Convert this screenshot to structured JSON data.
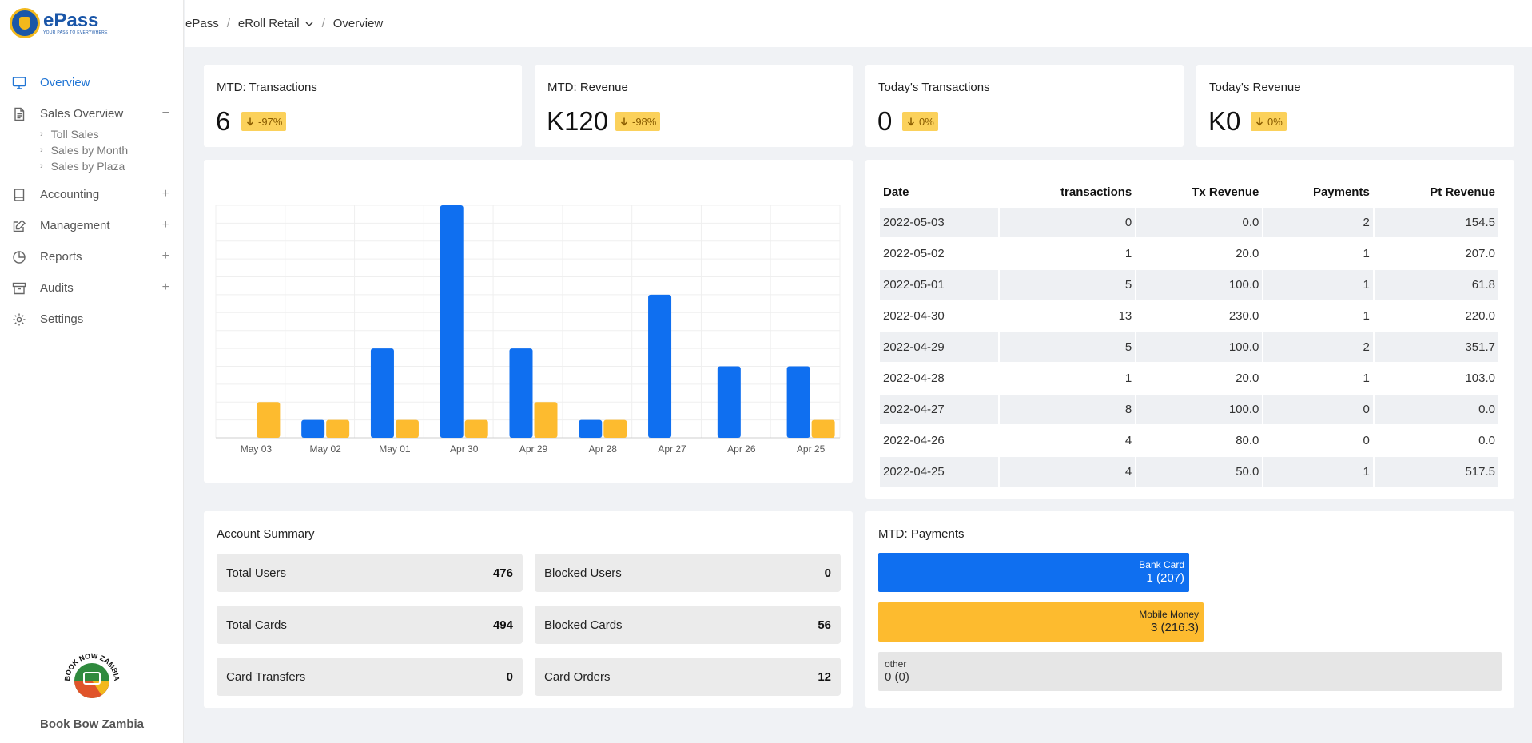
{
  "app": {
    "name": "ePass",
    "tagline": "YOUR PASS TO EVERYWHERE"
  },
  "breadcrumb": {
    "root": "ePass",
    "section": "eRoll Retail",
    "page": "Overview"
  },
  "sidebar": {
    "items": [
      {
        "label": "Overview",
        "icon": "monitor-icon",
        "active": true
      },
      {
        "label": "Sales Overview",
        "icon": "file-text-icon",
        "expanded": true,
        "children": [
          "Toll Sales",
          "Sales by Month",
          "Sales by Plaza"
        ]
      },
      {
        "label": "Accounting",
        "icon": "book-icon"
      },
      {
        "label": "Management",
        "icon": "edit-icon"
      },
      {
        "label": "Reports",
        "icon": "pie-chart-icon"
      },
      {
        "label": "Audits",
        "icon": "archive-icon"
      },
      {
        "label": "Settings",
        "icon": "gear-icon"
      }
    ],
    "expand_symbol": "+",
    "collapse_symbol": "−",
    "footer_logo_text": "BOOK NOW ZAMBIA",
    "footer_name": "Book Bow Zambia"
  },
  "stats": [
    {
      "title": "MTD: Transactions",
      "value": "6",
      "change": "-97%"
    },
    {
      "title": "MTD: Revenue",
      "value": "K120",
      "change": "-98%"
    },
    {
      "title": "Today's Transactions",
      "value": "0",
      "change": "0%"
    },
    {
      "title": "Today's Revenue",
      "value": "K0",
      "change": "0%"
    }
  ],
  "colors": {
    "blue": "#0f6ff0",
    "yellow": "#fdbb2f",
    "active": "#1f74d4"
  },
  "chart_data": {
    "type": "bar",
    "categories": [
      "May 03",
      "May 02",
      "May 01",
      "Apr 30",
      "Apr 29",
      "Apr 28",
      "Apr 27",
      "Apr 26",
      "Apr 25"
    ],
    "series": [
      {
        "values": [
          0,
          1,
          5,
          13,
          5,
          1,
          8,
          4,
          4
        ],
        "color": "#0f6ff0"
      },
      {
        "values": [
          2,
          1,
          1,
          1,
          2,
          1,
          0,
          0,
          1
        ],
        "color": "#fdbb2f"
      }
    ],
    "ylim": [
      0,
      13
    ],
    "grid": true,
    "title": "",
    "xlabel": "",
    "ylabel": ""
  },
  "daily_table": {
    "headers": [
      "Date",
      "transactions",
      "Tx Revenue",
      "Payments",
      "Pt Revenue"
    ],
    "rows": [
      [
        "2022-05-03",
        "0",
        "0.0",
        "2",
        "154.5"
      ],
      [
        "2022-05-02",
        "1",
        "20.0",
        "1",
        "207.0"
      ],
      [
        "2022-05-01",
        "5",
        "100.0",
        "1",
        "61.8"
      ],
      [
        "2022-04-30",
        "13",
        "230.0",
        "1",
        "220.0"
      ],
      [
        "2022-04-29",
        "5",
        "100.0",
        "2",
        "351.7"
      ],
      [
        "2022-04-28",
        "1",
        "20.0",
        "1",
        "103.0"
      ],
      [
        "2022-04-27",
        "8",
        "100.0",
        "0",
        "0.0"
      ],
      [
        "2022-04-26",
        "4",
        "80.0",
        "0",
        "0.0"
      ],
      [
        "2022-04-25",
        "4",
        "50.0",
        "1",
        "517.5"
      ]
    ]
  },
  "account_summary": {
    "title": "Account Summary",
    "items": [
      {
        "label": "Total Users",
        "value": "476"
      },
      {
        "label": "Blocked Users",
        "value": "0"
      },
      {
        "label": "Total Cards",
        "value": "494"
      },
      {
        "label": "Blocked Cards",
        "value": "56"
      },
      {
        "label": "Card Transfers",
        "value": "0"
      },
      {
        "label": "Card Orders",
        "value": "12"
      }
    ]
  },
  "payments": {
    "title": "MTD: Payments",
    "items": [
      {
        "label": "Bank Card",
        "value": "1 (207)",
        "amount": 207,
        "color": "#0f6ff0",
        "text_color": "#ffffff"
      },
      {
        "label": "Mobile Money",
        "value": "3 (216.3)",
        "amount": 216.3,
        "color": "#fdbb2f",
        "text_color": "#222222"
      },
      {
        "label": "other",
        "value": "0 (0)",
        "amount": 0,
        "color": "#e6e6e6",
        "text_color": "#333333"
      }
    ],
    "scale_max": 415
  }
}
